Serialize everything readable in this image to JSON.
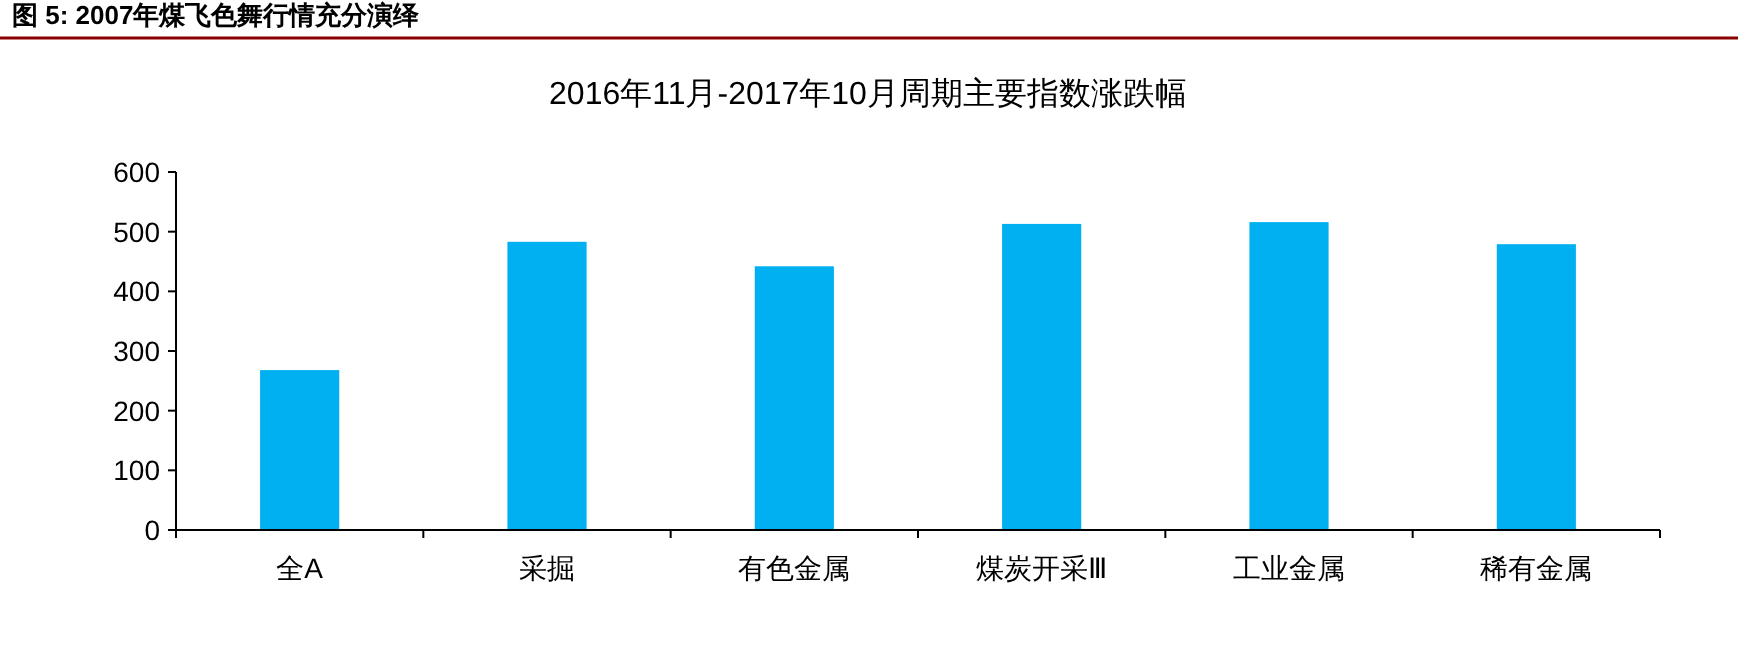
{
  "chart_data": {
    "type": "bar",
    "title": "图 5:   2007年煤飞色舞行情充分演绎",
    "subtitle": "2016年11月-2017年10月周期主要指数涨跌幅",
    "categories": [
      "全A",
      "采掘",
      "有色金属",
      "煤炭开采Ⅲ",
      "工业金属",
      "稀有金属"
    ],
    "values": [
      268,
      483,
      442,
      513,
      516,
      479
    ],
    "color": "#00b0f0",
    "ylim": [
      0,
      600
    ],
    "yticks": [
      0,
      100,
      200,
      300,
      400,
      500,
      600
    ],
    "grid": false
  }
}
